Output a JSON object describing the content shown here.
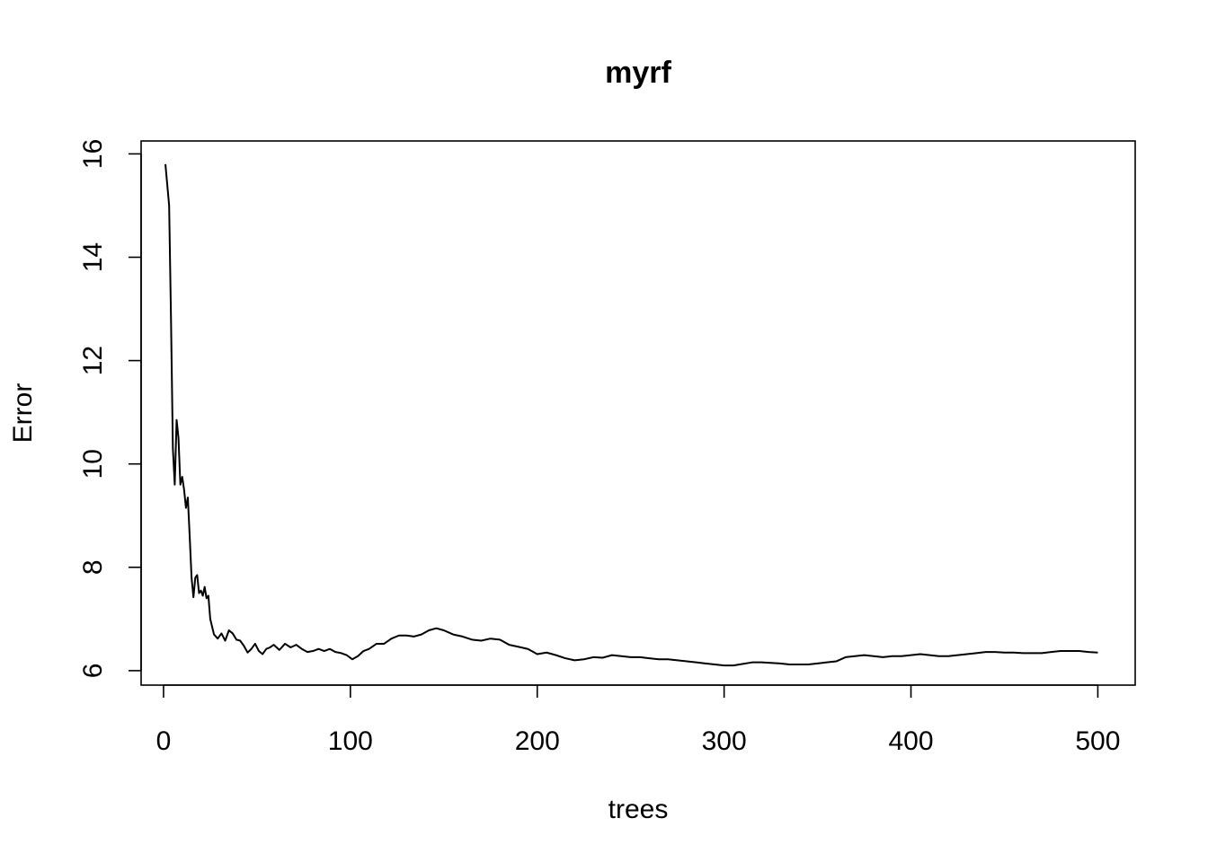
{
  "chart_data": {
    "type": "line",
    "title": "myrf",
    "xlabel": "trees",
    "ylabel": "Error",
    "xlim": [
      -12,
      520
    ],
    "ylim": [
      5.72,
      16.25
    ],
    "xticks": [
      0,
      100,
      200,
      300,
      400,
      500
    ],
    "yticks": [
      6,
      8,
      10,
      12,
      14,
      16
    ],
    "grid": false,
    "legend": "none",
    "series": [
      {
        "color": "#000000",
        "points": [
          [
            1,
            15.8
          ],
          [
            3,
            15.0
          ],
          [
            4,
            12.8
          ],
          [
            5,
            10.3
          ],
          [
            6,
            9.6
          ],
          [
            7,
            10.85
          ],
          [
            8,
            10.5
          ],
          [
            9,
            9.6
          ],
          [
            10,
            9.75
          ],
          [
            11,
            9.5
          ],
          [
            12,
            9.15
          ],
          [
            13,
            9.35
          ],
          [
            14,
            8.6
          ],
          [
            15,
            7.8
          ],
          [
            16,
            7.42
          ],
          [
            17,
            7.8
          ],
          [
            18,
            7.85
          ],
          [
            19,
            7.5
          ],
          [
            20,
            7.55
          ],
          [
            21,
            7.45
          ],
          [
            22,
            7.62
          ],
          [
            23,
            7.4
          ],
          [
            24,
            7.45
          ],
          [
            25,
            7.0
          ],
          [
            27,
            6.7
          ],
          [
            29,
            6.62
          ],
          [
            31,
            6.72
          ],
          [
            33,
            6.58
          ],
          [
            35,
            6.78
          ],
          [
            37,
            6.72
          ],
          [
            39,
            6.6
          ],
          [
            41,
            6.58
          ],
          [
            43,
            6.48
          ],
          [
            45,
            6.35
          ],
          [
            47,
            6.42
          ],
          [
            49,
            6.52
          ],
          [
            51,
            6.38
          ],
          [
            53,
            6.32
          ],
          [
            55,
            6.42
          ],
          [
            57,
            6.45
          ],
          [
            59,
            6.5
          ],
          [
            62,
            6.4
          ],
          [
            65,
            6.52
          ],
          [
            68,
            6.45
          ],
          [
            71,
            6.5
          ],
          [
            74,
            6.42
          ],
          [
            77,
            6.36
          ],
          [
            80,
            6.38
          ],
          [
            83,
            6.42
          ],
          [
            86,
            6.38
          ],
          [
            89,
            6.42
          ],
          [
            92,
            6.36
          ],
          [
            95,
            6.34
          ],
          [
            98,
            6.3
          ],
          [
            101,
            6.22
          ],
          [
            104,
            6.28
          ],
          [
            107,
            6.38
          ],
          [
            110,
            6.42
          ],
          [
            114,
            6.52
          ],
          [
            118,
            6.52
          ],
          [
            122,
            6.62
          ],
          [
            126,
            6.68
          ],
          [
            130,
            6.68
          ],
          [
            134,
            6.66
          ],
          [
            138,
            6.7
          ],
          [
            142,
            6.78
          ],
          [
            146,
            6.82
          ],
          [
            150,
            6.78
          ],
          [
            155,
            6.7
          ],
          [
            160,
            6.66
          ],
          [
            165,
            6.6
          ],
          [
            170,
            6.58
          ],
          [
            175,
            6.62
          ],
          [
            180,
            6.6
          ],
          [
            185,
            6.5
          ],
          [
            190,
            6.46
          ],
          [
            195,
            6.42
          ],
          [
            200,
            6.32
          ],
          [
            205,
            6.35
          ],
          [
            210,
            6.3
          ],
          [
            215,
            6.24
          ],
          [
            220,
            6.2
          ],
          [
            225,
            6.22
          ],
          [
            230,
            6.26
          ],
          [
            235,
            6.25
          ],
          [
            240,
            6.3
          ],
          [
            245,
            6.28
          ],
          [
            250,
            6.26
          ],
          [
            255,
            6.26
          ],
          [
            260,
            6.24
          ],
          [
            265,
            6.22
          ],
          [
            270,
            6.22
          ],
          [
            275,
            6.2
          ],
          [
            280,
            6.18
          ],
          [
            285,
            6.16
          ],
          [
            290,
            6.14
          ],
          [
            295,
            6.12
          ],
          [
            300,
            6.1
          ],
          [
            305,
            6.1
          ],
          [
            310,
            6.13
          ],
          [
            315,
            6.16
          ],
          [
            320,
            6.16
          ],
          [
            325,
            6.15
          ],
          [
            330,
            6.14
          ],
          [
            335,
            6.12
          ],
          [
            340,
            6.12
          ],
          [
            345,
            6.12
          ],
          [
            350,
            6.14
          ],
          [
            355,
            6.16
          ],
          [
            360,
            6.18
          ],
          [
            365,
            6.26
          ],
          [
            370,
            6.28
          ],
          [
            375,
            6.3
          ],
          [
            380,
            6.28
          ],
          [
            385,
            6.26
          ],
          [
            390,
            6.28
          ],
          [
            395,
            6.28
          ],
          [
            400,
            6.3
          ],
          [
            405,
            6.32
          ],
          [
            410,
            6.3
          ],
          [
            415,
            6.28
          ],
          [
            420,
            6.28
          ],
          [
            425,
            6.3
          ],
          [
            430,
            6.32
          ],
          [
            435,
            6.34
          ],
          [
            440,
            6.36
          ],
          [
            445,
            6.36
          ],
          [
            450,
            6.35
          ],
          [
            455,
            6.35
          ],
          [
            460,
            6.34
          ],
          [
            465,
            6.34
          ],
          [
            470,
            6.34
          ],
          [
            475,
            6.36
          ],
          [
            480,
            6.38
          ],
          [
            485,
            6.38
          ],
          [
            490,
            6.38
          ],
          [
            495,
            6.36
          ],
          [
            500,
            6.35
          ]
        ]
      }
    ]
  }
}
